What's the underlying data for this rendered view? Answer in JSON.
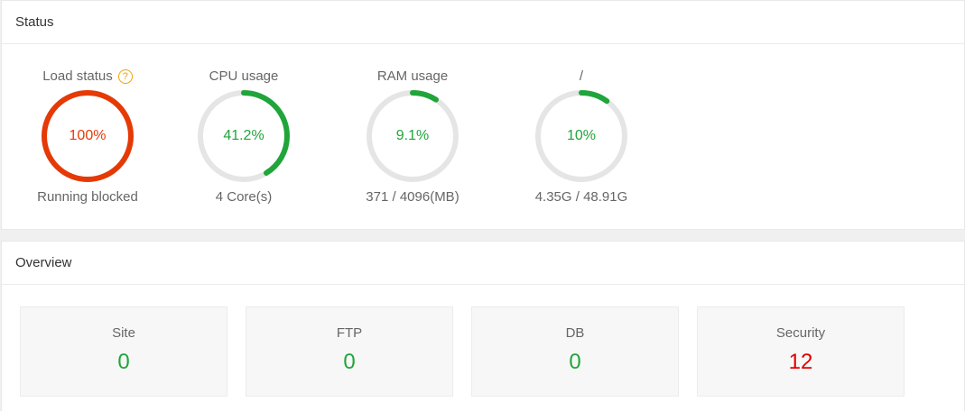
{
  "colors": {
    "critical": "#e53a06",
    "ok": "#20a53a",
    "track": "#e5e5e5",
    "alert": "#e00000"
  },
  "status": {
    "title": "Status",
    "gauges": [
      {
        "title": "Load status",
        "help_icon": "?",
        "value": "100%",
        "percent": 100,
        "detail": "Running blocked",
        "state": "critical"
      },
      {
        "title": "CPU usage",
        "value": "41.2%",
        "percent": 41.2,
        "detail": "4 Core(s)",
        "state": "ok"
      },
      {
        "title": "RAM usage",
        "value": "9.1%",
        "percent": 9.1,
        "detail": "371 / 4096(MB)",
        "state": "ok"
      },
      {
        "title": "/",
        "value": "10%",
        "percent": 10,
        "detail": "4.35G / 48.91G",
        "state": "ok"
      }
    ]
  },
  "overview": {
    "title": "Overview",
    "cards": [
      {
        "label": "Site",
        "value": "0",
        "state": "ok"
      },
      {
        "label": "FTP",
        "value": "0",
        "state": "ok"
      },
      {
        "label": "DB",
        "value": "0",
        "state": "ok"
      },
      {
        "label": "Security",
        "value": "12",
        "state": "alert"
      }
    ]
  }
}
